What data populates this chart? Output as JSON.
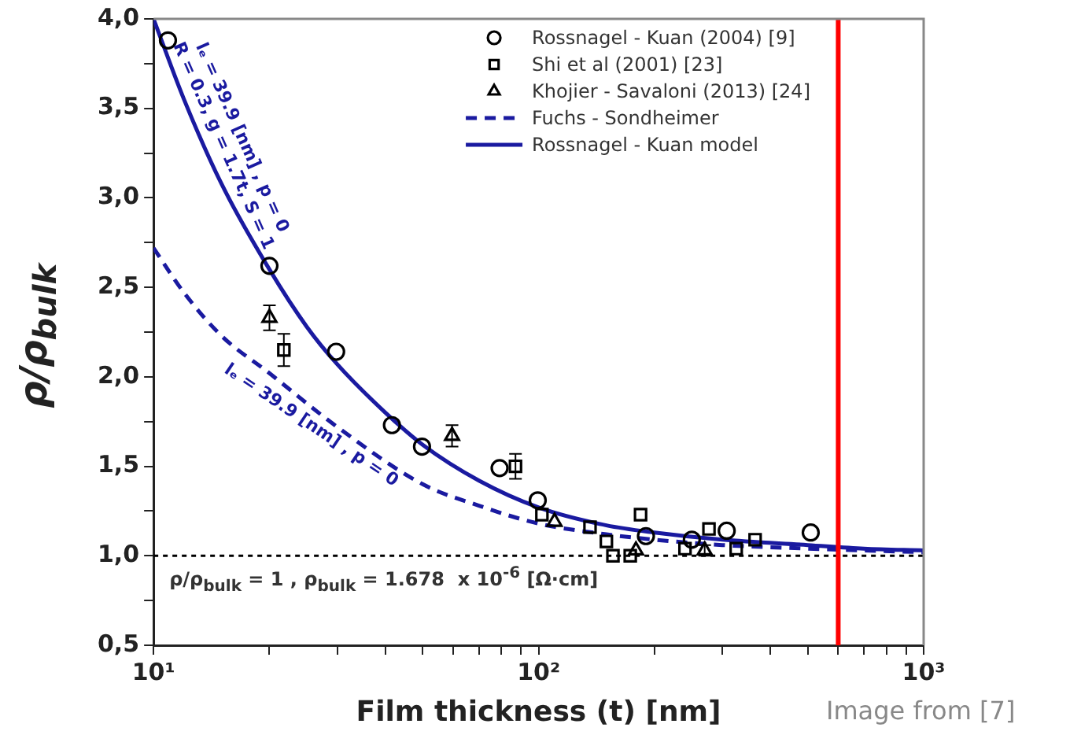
{
  "chart_data": {
    "type": "scatter",
    "xlabel": "Film thickness (t) [nm]",
    "ylabel": "ρ/ρ$_{bulk}$",
    "log": "x",
    "xlim": [
      10,
      1000
    ],
    "xticks": [
      {
        "value": 10,
        "label": "10¹"
      },
      {
        "value": 20,
        "label": null
      },
      {
        "value": 30,
        "label": null
      },
      {
        "value": 40,
        "label": null
      },
      {
        "value": 50,
        "label": null
      },
      {
        "value": 60,
        "label": null
      },
      {
        "value": 70,
        "label": null
      },
      {
        "value": 80,
        "label": null
      },
      {
        "value": 90,
        "label": null
      },
      {
        "value": 100,
        "label": "10²"
      },
      {
        "value": 200,
        "label": null
      },
      {
        "value": 300,
        "label": null
      },
      {
        "value": 400,
        "label": null
      },
      {
        "value": 500,
        "label": null
      },
      {
        "value": 600,
        "label": null
      },
      {
        "value": 700,
        "label": null
      },
      {
        "value": 800,
        "label": null
      },
      {
        "value": 900,
        "label": null
      },
      {
        "value": 1000,
        "label": "10³"
      }
    ],
    "ylim": [
      0.5,
      4.0
    ],
    "yticks": [
      {
        "value": 0.5,
        "label": "0,5"
      },
      {
        "value": 0.75,
        "label": null
      },
      {
        "value": 1.0,
        "label": "1,0"
      },
      {
        "value": 1.25,
        "label": null
      },
      {
        "value": 1.5,
        "label": "1,5"
      },
      {
        "value": 1.75,
        "label": null
      },
      {
        "value": 2.0,
        "label": "2,0"
      },
      {
        "value": 2.25,
        "label": null
      },
      {
        "value": 2.5,
        "label": "2,5"
      },
      {
        "value": 2.75,
        "label": null
      },
      {
        "value": 3.0,
        "label": "3,0"
      },
      {
        "value": 3.25,
        "label": null
      },
      {
        "value": 3.5,
        "label": "3,5"
      },
      {
        "value": 3.75,
        "label": null
      },
      {
        "value": 4.0,
        "label": "4,0"
      }
    ],
    "grid": false,
    "legend": "top right",
    "series": [
      {
        "name": "Rossnagel - Kuan (2004) [9]",
        "marker": "circle",
        "color": "#000000",
        "x": [
          10.9,
          20.0,
          29.8,
          41.6,
          49.8,
          79.2,
          99.5,
          190,
          250,
          308,
          509
        ],
        "values": [
          3.88,
          2.62,
          2.14,
          1.73,
          1.61,
          1.49,
          1.31,
          1.11,
          1.09,
          1.14,
          1.13
        ]
      },
      {
        "name": "Shi et al (2001) [23]",
        "marker": "square",
        "color": "#000000",
        "x": [
          21.8,
          87.1,
          102,
          136,
          150,
          156,
          173,
          184,
          240,
          277,
          326,
          365
        ],
        "values": [
          2.15,
          1.5,
          1.23,
          1.16,
          1.08,
          1.0,
          1.0,
          1.23,
          1.04,
          1.15,
          1.04,
          1.09
        ],
        "errors": [
          0.09,
          0.07,
          null,
          null,
          null,
          null,
          null,
          null,
          null,
          null,
          null,
          null
        ]
      },
      {
        "name": "Khojier - Savaloni (2013) [24]",
        "marker": "triangle",
        "color": "#000000",
        "x": [
          20.0,
          59.6,
          110,
          179,
          270
        ],
        "values": [
          2.33,
          1.67,
          1.19,
          1.03,
          1.03
        ],
        "errors": [
          0.07,
          0.06,
          null,
          null,
          0.03
        ]
      },
      {
        "name": "Fuchs - Sondheimer",
        "type": "line",
        "line_style": "dashed",
        "marker": "none",
        "color": "#1a1aa0",
        "x": [
          10,
          12,
          15,
          20,
          30,
          50,
          70,
          100,
          150,
          200,
          300,
          500,
          1000
        ],
        "values": [
          2.72,
          2.47,
          2.23,
          2.02,
          1.72,
          1.4,
          1.28,
          1.18,
          1.12,
          1.09,
          1.06,
          1.04,
          1.02
        ]
      },
      {
        "name": "Rossnagel - Kuan model",
        "type": "line",
        "line_style": "solid",
        "marker": "none",
        "color": "#1a1aa0",
        "x": [
          10,
          12,
          15,
          20,
          25,
          30,
          40,
          50,
          70,
          100,
          150,
          200,
          300,
          500,
          700,
          1000
        ],
        "values": [
          4.0,
          3.55,
          3.08,
          2.6,
          2.28,
          2.07,
          1.8,
          1.62,
          1.42,
          1.27,
          1.17,
          1.13,
          1.09,
          1.06,
          1.04,
          1.03
        ]
      }
    ],
    "ref_lines": [
      {
        "axis": "y",
        "value": 1.0,
        "color": "#000000",
        "line_style": "dotted",
        "label": "ρ/ρ$_{bulk}$ = 1 , ρ$_{bulk}$ = 1.678  x 10$^{-6}$ [Ω·cm]"
      },
      {
        "axis": "x",
        "value": 600,
        "color": "#ff0000",
        "line_style": "solid"
      }
    ],
    "annotations": [
      "lₑ = 39.9 [nm] , p = 0\nR = 0.3, g = 1.7t, S = 1",
      "lₑ = 39.9 [nm] , p = 0",
      "Image from [7]"
    ]
  }
}
